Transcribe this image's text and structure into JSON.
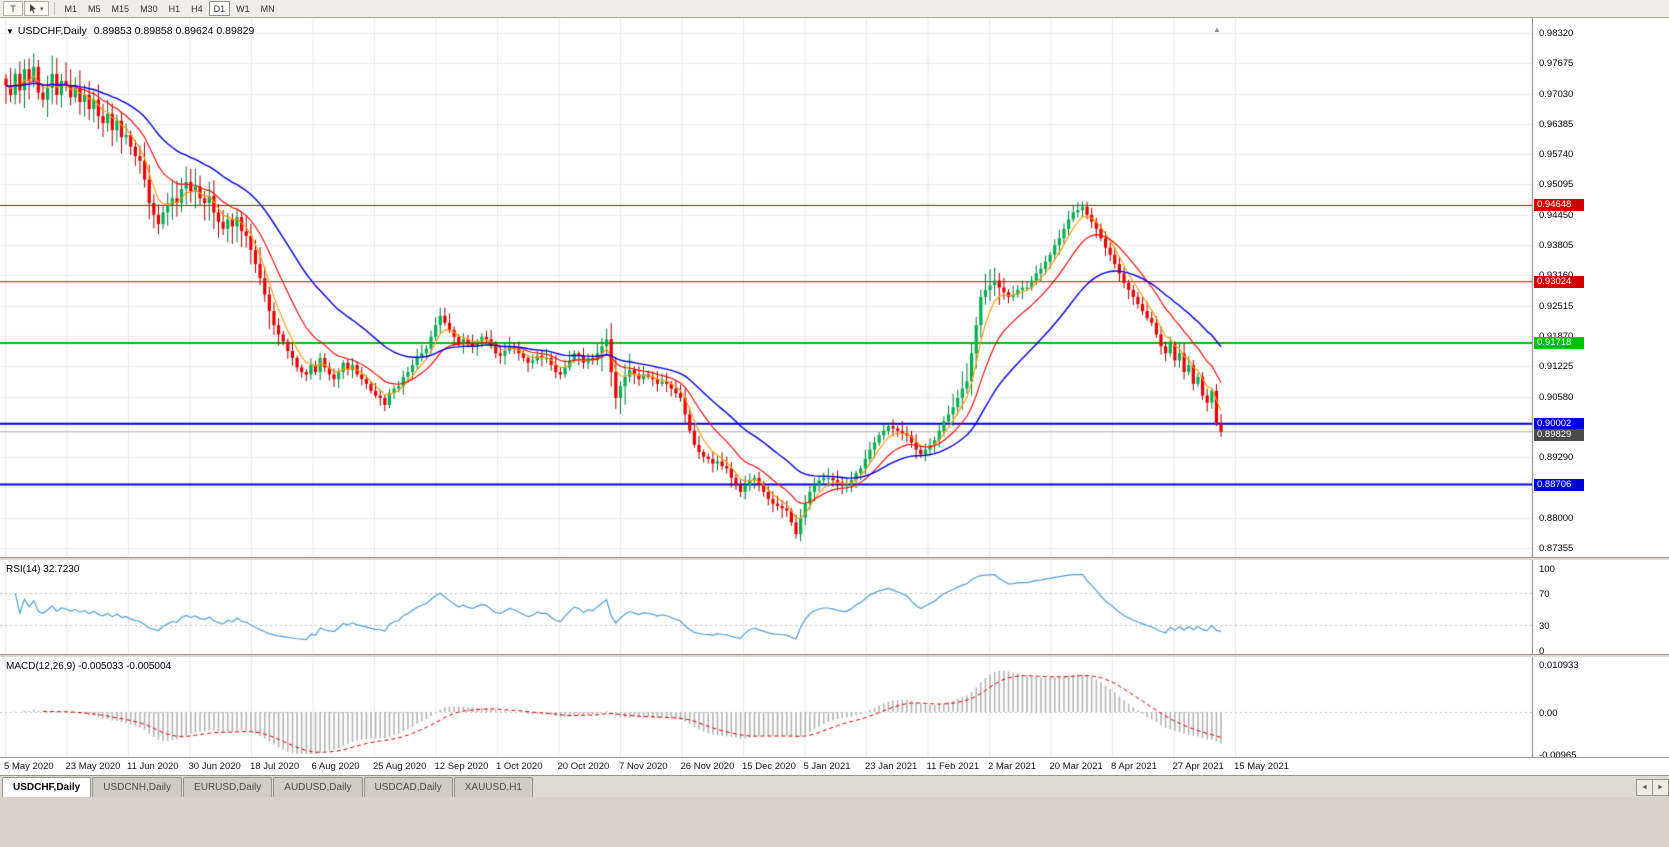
{
  "toolbar": {
    "t_button": "T",
    "dropdown_glyph": "▾",
    "timeframes": [
      "M1",
      "M5",
      "M15",
      "M30",
      "H1",
      "H4",
      "D1",
      "W1",
      "MN"
    ],
    "active_timeframe": "D1"
  },
  "chart": {
    "dropdown_glyph": "▼",
    "symbol": "USDCHF,Daily",
    "ohlc_text": "0.89853 0.89858 0.89624 0.89829",
    "marker_glyph": "▲"
  },
  "price_axis_labels": [
    "0.98320",
    "0.97675",
    "0.97030",
    "0.96385",
    "0.95740",
    "0.95095",
    "0.94450",
    "0.93805",
    "0.93160",
    "0.92515",
    "0.91870",
    "0.91225",
    "0.90580",
    "0.89290",
    "0.88645",
    "0.88000",
    "0.87355"
  ],
  "current_price": {
    "label": "0.89829",
    "price": 0.89829,
    "bg": "#4A4A4A"
  },
  "rsi": {
    "title": "RSI(14) 32.7230",
    "value": "32.7230",
    "color": "#4F9FD8",
    "levels": [
      70,
      30
    ]
  },
  "rsi_axis_labels": [
    "100",
    "70",
    "30",
    "0"
  ],
  "macd": {
    "title": "MACD(12,26,9) -0.005033 -0.005004",
    "values": [
      "-0.005033",
      "-0.005004"
    ],
    "colors": {
      "histogram": "#B4B4B4",
      "signal": "#E00000"
    }
  },
  "macd_axis_labels": [
    "0.010933",
    "0.00",
    "-0.00965"
  ],
  "date_labels": [
    "5 May 2020",
    "23 May 2020",
    "11 Jun 2020",
    "30 Jun 2020",
    "18 Jul 2020",
    "6 Aug 2020",
    "25 Aug 2020",
    "12 Sep 2020",
    "1 Oct 2020",
    "20 Oct 2020",
    "7 Nov 2020",
    "26 Nov 2020",
    "15 Dec 2020",
    "5 Jan 2021",
    "23 Jan 2021",
    "11 Feb 2021",
    "2 Mar 2021",
    "20 Mar 2021",
    "8 Apr 2021",
    "27 Apr 2021",
    "15 May 2021"
  ],
  "tabs": [
    {
      "label": "USDCHF,Daily",
      "active": true
    },
    {
      "label": "USDCNH,Daily",
      "active": false
    },
    {
      "label": "EURUSD,Daily",
      "active": false
    },
    {
      "label": "AUDUSD,Daily",
      "active": false
    },
    {
      "label": "USDCAD,Daily",
      "active": false
    },
    {
      "label": "XAUUSD,H1",
      "active": false
    }
  ],
  "tabs_bar": {
    "scroll_left": "◄",
    "scroll_right": "►"
  },
  "chart_data": {
    "type": "candlestick",
    "symbol": "USDCHF",
    "timeframe": "Daily",
    "title": "USDCHF,Daily",
    "ohlc_current": {
      "open": "0.89853",
      "high": "0.89858",
      "low": "0.89624",
      "close": "0.89829"
    },
    "y_axis": {
      "min": 0.87355,
      "max": 0.9832,
      "tick": 0.00645
    },
    "colors": {
      "bull": "#00B050",
      "bull_edge": "#007A36",
      "bear": "#E80000",
      "bear_edge": "#9E0000"
    },
    "horizontal_lines": [
      {
        "price": 0.94648,
        "label": "0.94648",
        "color": "#D00000",
        "width": 1
      },
      {
        "price": 0.93024,
        "label": "0.93024",
        "color": "#D00000",
        "width": 1
      },
      {
        "price": 0.91718,
        "label": "0.91718",
        "color": "#00BE00",
        "width": 2
      },
      {
        "price": 0.90002,
        "label": "0.90002",
        "color": "#0000D8",
        "width": 2
      },
      {
        "price": 0.88706,
        "label": "0.88706",
        "color": "#0000D8",
        "width": 2
      }
    ],
    "moving_averages": [
      {
        "period": 5,
        "color": "#FF9900"
      },
      {
        "period": 13,
        "color": "#FF0000"
      },
      {
        "period": 30,
        "color": "#0000E6"
      }
    ],
    "indicators": [
      {
        "name": "RSI",
        "params": "14",
        "value": "32.7230"
      },
      {
        "name": "MACD",
        "params": "12,26,9",
        "values": [
          "-0.005033",
          "-0.005004"
        ]
      }
    ],
    "closes": [
      0.972,
      0.97,
      0.9745,
      0.971,
      0.9755,
      0.973,
      0.976,
      0.9705,
      0.969,
      0.9715,
      0.9745,
      0.97,
      0.973,
      0.972,
      0.9695,
      0.9715,
      0.9685,
      0.97,
      0.967,
      0.969,
      0.9655,
      0.964,
      0.966,
      0.9625,
      0.9645,
      0.961,
      0.9615,
      0.959,
      0.957,
      0.956,
      0.952,
      0.947,
      0.9445,
      0.9425,
      0.945,
      0.9465,
      0.948,
      0.947,
      0.95,
      0.9515,
      0.9495,
      0.9505,
      0.948,
      0.947,
      0.9485,
      0.945,
      0.943,
      0.9415,
      0.9435,
      0.942,
      0.944,
      0.941,
      0.94,
      0.937,
      0.934,
      0.931,
      0.9275,
      0.924,
      0.921,
      0.919,
      0.9175,
      0.9155,
      0.914,
      0.912,
      0.911,
      0.9105,
      0.9125,
      0.911,
      0.914,
      0.912,
      0.9105,
      0.9095,
      0.911,
      0.913,
      0.9115,
      0.9125,
      0.9105,
      0.9095,
      0.9085,
      0.907,
      0.906,
      0.9055,
      0.904,
      0.9065,
      0.9075,
      0.908,
      0.91,
      0.911,
      0.9125,
      0.914,
      0.915,
      0.916,
      0.9185,
      0.921,
      0.923,
      0.9215,
      0.92,
      0.9185,
      0.917,
      0.918,
      0.917,
      0.9165,
      0.9175,
      0.9185,
      0.918,
      0.9165,
      0.915,
      0.9145,
      0.9155,
      0.9165,
      0.916,
      0.915,
      0.914,
      0.913,
      0.9135,
      0.9145,
      0.914,
      0.914,
      0.9125,
      0.911,
      0.9105,
      0.912,
      0.9135,
      0.915,
      0.9145,
      0.913,
      0.914,
      0.9135,
      0.915,
      0.9165,
      0.918,
      0.911,
      0.9055,
      0.908,
      0.91,
      0.9115,
      0.9105,
      0.9095,
      0.9105,
      0.91,
      0.9095,
      0.9085,
      0.909,
      0.9085,
      0.9075,
      0.9065,
      0.9055,
      0.902,
      0.8985,
      0.8955,
      0.894,
      0.893,
      0.8925,
      0.8915,
      0.892,
      0.891,
      0.8905,
      0.8885,
      0.887,
      0.8855,
      0.887,
      0.888,
      0.8885,
      0.887,
      0.8855,
      0.884,
      0.883,
      0.8825,
      0.882,
      0.8815,
      0.879,
      0.8765,
      0.88,
      0.883,
      0.8855,
      0.887,
      0.888,
      0.8885,
      0.8885,
      0.888,
      0.8875,
      0.887,
      0.887,
      0.888,
      0.8895,
      0.8905,
      0.8925,
      0.8945,
      0.896,
      0.8975,
      0.8985,
      0.8995,
      0.899,
      0.8985,
      0.898,
      0.8975,
      0.896,
      0.8945,
      0.8935,
      0.8945,
      0.8955,
      0.8965,
      0.8985,
      0.9005,
      0.902,
      0.9035,
      0.9055,
      0.9075,
      0.909,
      0.915,
      0.921,
      0.927,
      0.9285,
      0.9295,
      0.9305,
      0.929,
      0.928,
      0.927,
      0.9275,
      0.9285,
      0.929,
      0.929,
      0.9305,
      0.932,
      0.933,
      0.9345,
      0.936,
      0.938,
      0.9395,
      0.9415,
      0.9435,
      0.945,
      0.9455,
      0.9462,
      0.9445,
      0.943,
      0.9415,
      0.9395,
      0.9375,
      0.936,
      0.934,
      0.932,
      0.93,
      0.9285,
      0.927,
      0.9255,
      0.924,
      0.9225,
      0.9215,
      0.919,
      0.9165,
      0.915,
      0.917,
      0.9135,
      0.915,
      0.911,
      0.9125,
      0.9085,
      0.91,
      0.906,
      0.9045,
      0.907,
      0.9,
      0.89829
    ]
  }
}
